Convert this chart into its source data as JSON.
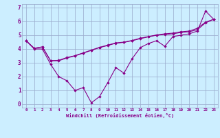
{
  "x": [
    0,
    1,
    2,
    3,
    4,
    5,
    6,
    7,
    8,
    9,
    10,
    11,
    12,
    13,
    14,
    15,
    16,
    17,
    18,
    19,
    20,
    21,
    22,
    23
  ],
  "line1": [
    4.6,
    4.0,
    4.0,
    2.9,
    2.0,
    1.7,
    1.0,
    1.2,
    0.1,
    0.55,
    1.55,
    2.65,
    2.25,
    3.3,
    4.1,
    4.4,
    4.6,
    4.2,
    4.9,
    5.0,
    5.1,
    5.3,
    6.75,
    6.15
  ],
  "line2": [
    4.6,
    4.05,
    4.15,
    3.15,
    3.15,
    3.35,
    3.5,
    3.7,
    3.9,
    4.1,
    4.25,
    4.42,
    4.48,
    4.6,
    4.75,
    4.88,
    5.0,
    5.05,
    5.1,
    5.2,
    5.25,
    5.4,
    5.9,
    6.15
  ],
  "line3": [
    4.6,
    4.05,
    4.15,
    3.15,
    3.18,
    3.38,
    3.52,
    3.72,
    3.92,
    4.12,
    4.28,
    4.44,
    4.5,
    4.62,
    4.78,
    4.9,
    5.02,
    5.1,
    5.15,
    5.25,
    5.3,
    5.5,
    5.95,
    6.15
  ],
  "bg_color": "#cceeff",
  "line_color": "#880088",
  "grid_color": "#99aacc",
  "xlabel": "Windchill (Refroidissement éolien,°C)",
  "ylim": [
    -0.25,
    7.25
  ],
  "xlim": [
    -0.5,
    23.5
  ],
  "yticks": [
    0,
    1,
    2,
    3,
    4,
    5,
    6,
    7
  ],
  "xticks": [
    0,
    1,
    2,
    3,
    4,
    5,
    6,
    7,
    8,
    9,
    10,
    11,
    12,
    13,
    14,
    15,
    16,
    17,
    18,
    19,
    20,
    21,
    22,
    23
  ],
  "marker": "D",
  "markersize": 2.2,
  "linewidth": 0.8
}
